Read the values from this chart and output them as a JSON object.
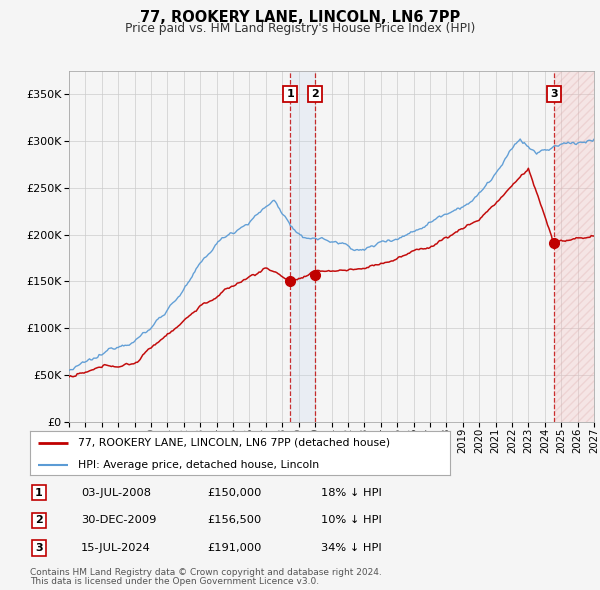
{
  "title": "77, ROOKERY LANE, LINCOLN, LN6 7PP",
  "subtitle": "Price paid vs. HM Land Registry's House Price Index (HPI)",
  "legend_line1": "77, ROOKERY LANE, LINCOLN, LN6 7PP (detached house)",
  "legend_line2": "HPI: Average price, detached house, Lincoln",
  "footer1": "Contains HM Land Registry data © Crown copyright and database right 2024.",
  "footer2": "This data is licensed under the Open Government Licence v3.0.",
  "transactions": [
    {
      "num": 1,
      "date": "03-JUL-2008",
      "price": "£150,000",
      "pct": "18% ↓ HPI",
      "year": 2008.5
    },
    {
      "num": 2,
      "date": "30-DEC-2009",
      "price": "£156,500",
      "pct": "10% ↓ HPI",
      "year": 2009.99
    },
    {
      "num": 3,
      "date": "15-JUL-2024",
      "price": "£191,000",
      "pct": "34% ↓ HPI",
      "year": 2024.54
    }
  ],
  "sale_prices_exact": [
    150000,
    156500,
    191000
  ],
  "ylim": [
    0,
    375000
  ],
  "xlim_start": 1995,
  "xlim_end": 2027,
  "hpi_color": "#5b9bd5",
  "price_color": "#c00000",
  "background_color": "#f5f5f5",
  "grid_color": "#cccccc",
  "shade1_color": "#c8d8ee",
  "shade2_color": "#f5c0c0"
}
